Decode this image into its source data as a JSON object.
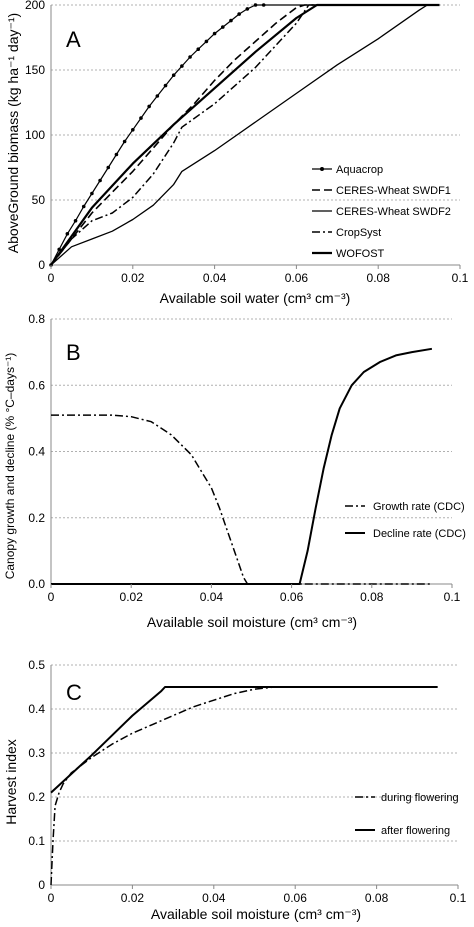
{
  "chart_data": [
    {
      "panel": "A",
      "type": "line",
      "xlabel": "Available soil water (cm³ cm⁻³)",
      "ylabel": "AboveGround biomass (kg ha⁻¹ day⁻¹)",
      "xlim": [
        0,
        0.1
      ],
      "ylim": [
        0,
        200
      ],
      "xticks": [
        "0",
        "0.02",
        "0.04",
        "0.06",
        "0.08",
        "0.1"
      ],
      "yticks": [
        "0",
        "50",
        "100",
        "150",
        "200"
      ],
      "grid": "horizontal",
      "legend_position": "right",
      "series": [
        {
          "name": "Aquacrop",
          "style": "solid-dots",
          "x": [
            0,
            0.002,
            0.004,
            0.006,
            0.008,
            0.01,
            0.012,
            0.014,
            0.016,
            0.018,
            0.02,
            0.022,
            0.024,
            0.026,
            0.028,
            0.03,
            0.032,
            0.034,
            0.036,
            0.038,
            0.04,
            0.042,
            0.044,
            0.046,
            0.048,
            0.05,
            0.052,
            0.054,
            0.056,
            0.058,
            0.06,
            0.062,
            0.064,
            0.066,
            0.068,
            0.07,
            0.072,
            0.074,
            0.076,
            0.078,
            0.08,
            0.082,
            0.084,
            0.086,
            0.088,
            0.09,
            0.092,
            0.094,
            0.095
          ],
          "y": [
            0,
            12,
            24,
            34,
            45,
            55,
            65,
            75,
            85,
            95,
            104,
            113,
            122,
            130,
            138,
            146,
            153,
            160,
            166,
            172,
            178,
            183,
            188,
            193,
            197,
            200,
            200,
            200,
            200,
            200,
            200,
            200,
            200,
            200,
            200,
            200,
            200,
            200,
            200,
            200,
            200,
            200,
            200,
            200,
            200,
            200,
            200,
            200,
            200
          ]
        },
        {
          "name": "CERES-Wheat SWDF1",
          "style": "dashed",
          "x": [
            0,
            0.005,
            0.01,
            0.015,
            0.02,
            0.025,
            0.03,
            0.035,
            0.04,
            0.045,
            0.05,
            0.055,
            0.06,
            0.062,
            0.095
          ],
          "y": [
            0,
            20,
            40,
            56,
            72,
            90,
            108,
            124,
            142,
            158,
            172,
            186,
            198,
            200,
            200
          ]
        },
        {
          "name": "CERES-Wheat SWDF2",
          "style": "solid-thin",
          "x": [
            0,
            0.005,
            0.01,
            0.015,
            0.02,
            0.025,
            0.03,
            0.032,
            0.04,
            0.05,
            0.06,
            0.07,
            0.08,
            0.09,
            0.092,
            0.095
          ],
          "y": [
            0,
            14,
            20,
            26,
            35,
            46,
            62,
            72,
            88,
            110,
            132,
            154,
            174,
            196,
            200,
            200
          ]
        },
        {
          "name": "CropSyst",
          "style": "dash-dot",
          "x": [
            0,
            0.005,
            0.01,
            0.015,
            0.02,
            0.025,
            0.03,
            0.032,
            0.04,
            0.05,
            0.06,
            0.063,
            0.095
          ],
          "y": [
            0,
            20,
            34,
            40,
            52,
            70,
            94,
            106,
            124,
            152,
            186,
            200,
            200
          ]
        },
        {
          "name": "WOFOST",
          "style": "solid-thick",
          "x": [
            0,
            0.01,
            0.02,
            0.03,
            0.04,
            0.05,
            0.06,
            0.065,
            0.095
          ],
          "y": [
            0,
            44,
            78,
            108,
            136,
            164,
            190,
            200,
            200
          ]
        }
      ]
    },
    {
      "panel": "B",
      "type": "line",
      "xlabel": "Available soil  moisture (cm³ cm⁻³)",
      "ylabel": "Canopy growth and decline  (% °C–days⁻¹)",
      "xlim": [
        0,
        0.1
      ],
      "ylim": [
        0,
        0.8
      ],
      "xticks": [
        "0",
        "0.02",
        "0.04",
        "0.06",
        "0.08",
        "0.1"
      ],
      "yticks": [
        "0.0",
        "0.2",
        "0.4",
        "0.6",
        "0.8"
      ],
      "grid": "horizontal",
      "legend_position": "right",
      "series": [
        {
          "name": "Growth rate (CDC)",
          "style": "dash-dot",
          "x": [
            0,
            0.005,
            0.01,
            0.015,
            0.02,
            0.025,
            0.03,
            0.035,
            0.038,
            0.04,
            0.042,
            0.044,
            0.046,
            0.048,
            0.049,
            0.062,
            0.095
          ],
          "y": [
            0.51,
            0.51,
            0.51,
            0.51,
            0.505,
            0.49,
            0.45,
            0.39,
            0.33,
            0.29,
            0.23,
            0.16,
            0.09,
            0.02,
            0.0,
            0.0,
            0.0
          ]
        },
        {
          "name": "Decline rate (CDC)",
          "style": "solid",
          "x": [
            0,
            0.02,
            0.04,
            0.062,
            0.064,
            0.066,
            0.068,
            0.07,
            0.072,
            0.075,
            0.078,
            0.082,
            0.086,
            0.09,
            0.095
          ],
          "y": [
            0.0,
            0.0,
            0.0,
            0.0,
            0.1,
            0.23,
            0.35,
            0.45,
            0.53,
            0.6,
            0.64,
            0.67,
            0.69,
            0.7,
            0.71
          ]
        }
      ]
    },
    {
      "panel": "C",
      "type": "line",
      "xlabel": "Available soil  moisture (cm³ cm⁻³)",
      "ylabel": "Harvest index",
      "xlim": [
        0,
        0.1
      ],
      "ylim": [
        0,
        0.5
      ],
      "xticks": [
        "0",
        "0.02",
        "0.04",
        "0.06",
        "0.08",
        "0.1"
      ],
      "yticks": [
        "0",
        "0.1",
        "0.2",
        "0.3",
        "0.4",
        "0.5"
      ],
      "grid": "horizontal",
      "legend_position": "right",
      "series": [
        {
          "name": "during flowering",
          "style": "dash-dot",
          "x": [
            0,
            0.0005,
            0.001,
            0.002,
            0.003,
            0.005,
            0.01,
            0.015,
            0.02,
            0.025,
            0.03,
            0.035,
            0.04,
            0.045,
            0.05,
            0.055,
            0.06,
            0.095
          ],
          "y": [
            0.0,
            0.1,
            0.18,
            0.21,
            0.23,
            0.255,
            0.29,
            0.32,
            0.345,
            0.365,
            0.385,
            0.405,
            0.42,
            0.435,
            0.445,
            0.45,
            0.45,
            0.45
          ]
        },
        {
          "name": "after flowering",
          "style": "solid",
          "x": [
            0,
            0.01,
            0.02,
            0.027,
            0.028,
            0.095
          ],
          "y": [
            0.21,
            0.295,
            0.385,
            0.44,
            0.45,
            0.45
          ]
        }
      ]
    }
  ],
  "panels": {
    "a": {
      "letter": "A",
      "xlabel": "Available soil water (cm³ cm⁻³)",
      "ylabel": "AboveGround biomass (kg ha⁻¹ day⁻¹)",
      "xticks": [
        "0",
        "0.02",
        "0.04",
        "0.06",
        "0.08",
        "0.1"
      ],
      "yticks": [
        "0",
        "50",
        "100",
        "150",
        "200"
      ],
      "legend": [
        "Aquacrop",
        "CERES-Wheat SWDF1",
        "CERES-Wheat SWDF2",
        "CropSyst",
        "WOFOST"
      ]
    },
    "b": {
      "letter": "B",
      "xlabel": "Available soil  moisture (cm³ cm⁻³)",
      "ylabel": "Canopy growth and decline  (% °C–days⁻¹)",
      "xticks": [
        "0",
        "0.02",
        "0.04",
        "0.06",
        "0.08",
        "0.1"
      ],
      "yticks": [
        "0.0",
        "0.2",
        "0.4",
        "0.6",
        "0.8"
      ],
      "legend": [
        "Growth rate (CDC)",
        "Decline rate (CDC)"
      ]
    },
    "c": {
      "letter": "C",
      "xlabel": "Available soil  moisture (cm³ cm⁻³)",
      "ylabel": "Harvest index",
      "xticks": [
        "0",
        "0.02",
        "0.04",
        "0.06",
        "0.08",
        "0.1"
      ],
      "yticks": [
        "0",
        "0.1",
        "0.2",
        "0.3",
        "0.4",
        "0.5"
      ],
      "legend": [
        "during flowering",
        "after flowering"
      ]
    }
  }
}
